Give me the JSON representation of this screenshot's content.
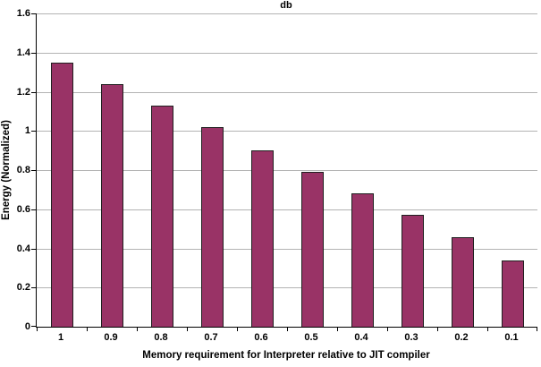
{
  "chart_data": {
    "type": "bar",
    "title": "db",
    "xlabel": "Memory requirement for Interpreter relative to JIT compiler",
    "ylabel": "Energy (Normalized)",
    "categories": [
      "1",
      "0.9",
      "0.8",
      "0.7",
      "0.6",
      "0.5",
      "0.4",
      "0.3",
      "0.2",
      "0.1"
    ],
    "values": [
      1.35,
      1.24,
      1.13,
      1.02,
      0.9,
      0.79,
      0.68,
      0.57,
      0.455,
      0.34
    ],
    "ylim": [
      0,
      1.6
    ],
    "yticks": [
      0,
      0.2,
      0.4,
      0.6,
      0.8,
      1,
      1.2,
      1.4,
      1.6
    ],
    "ytick_labels": [
      "0",
      "0.2",
      "0.4",
      "0.6",
      "0.8",
      "1",
      "1.2",
      "1.4",
      "1.6"
    ],
    "grid": true,
    "legend_position": "none",
    "colors": {
      "bar_fill": "#993366",
      "bar_border": "#1f1f1f",
      "gridline": "#b3b3b3",
      "axis": "#000000",
      "text": "#000000",
      "background": "#ffffff"
    }
  }
}
